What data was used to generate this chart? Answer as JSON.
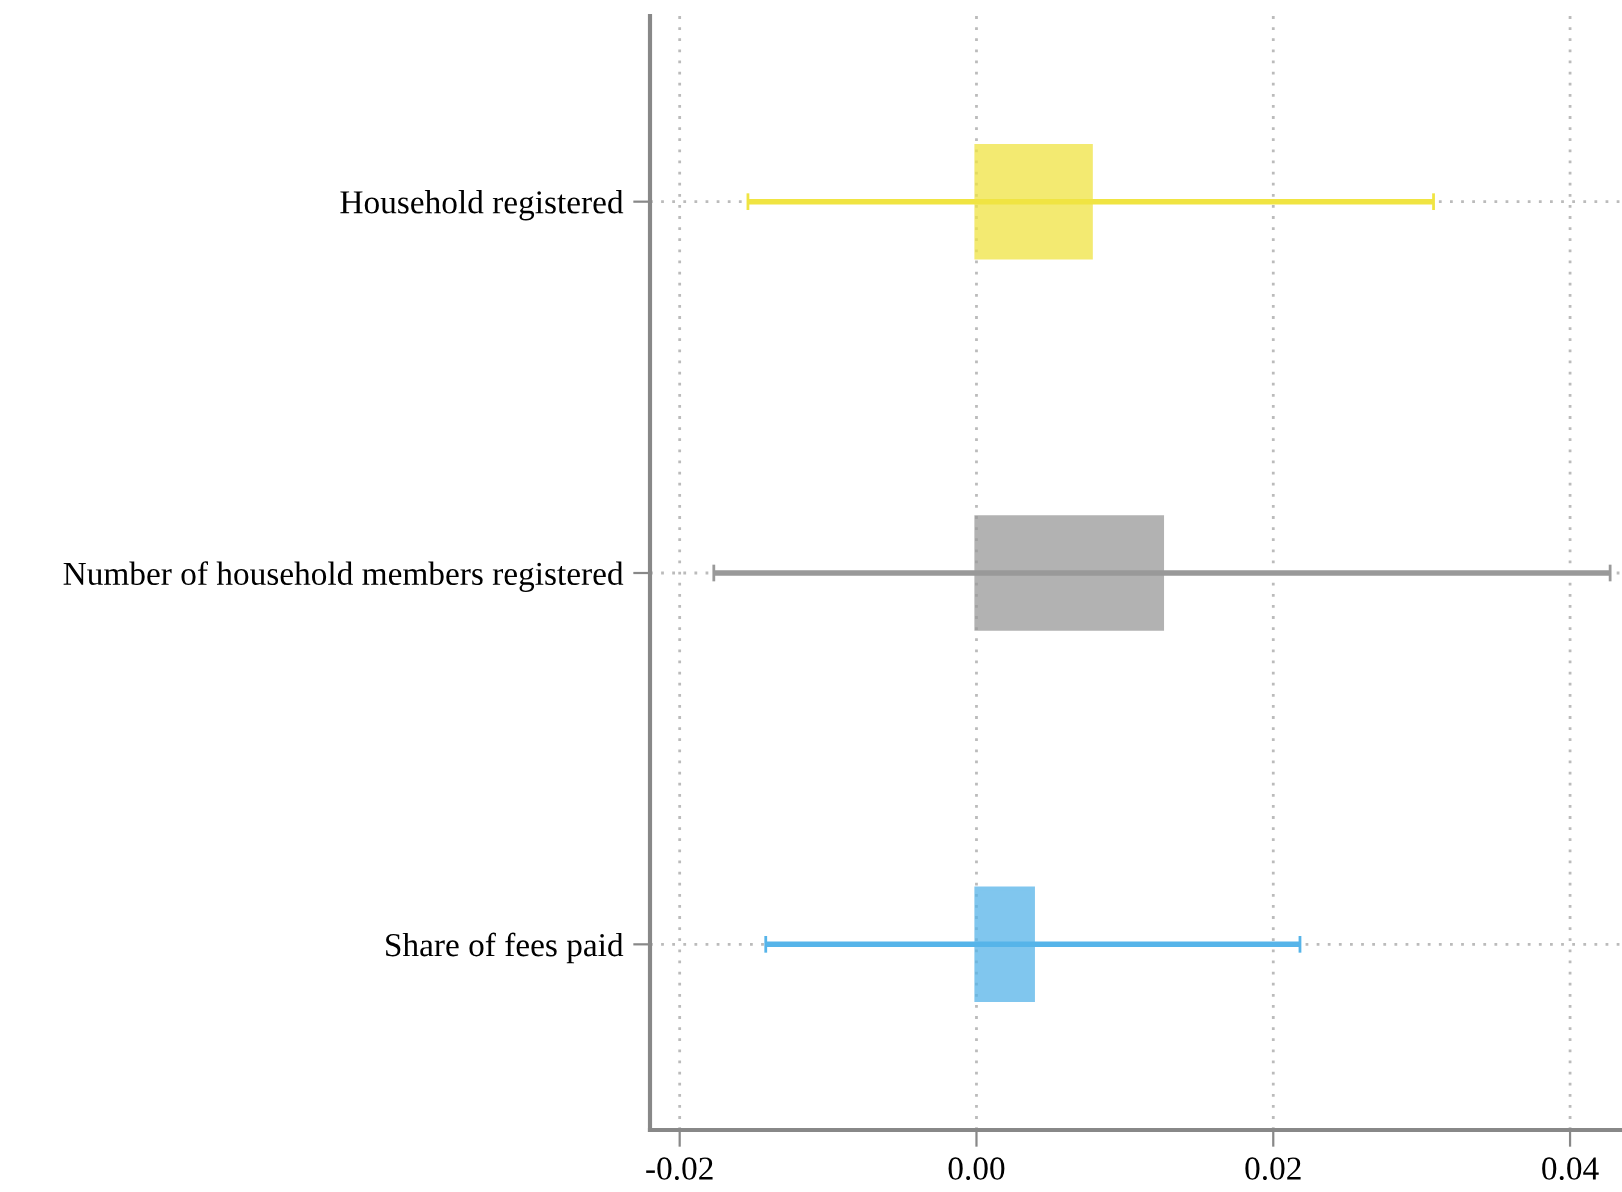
{
  "chart_data": {
    "type": "bar",
    "orientation": "horizontal",
    "categories": [
      "Household registered",
      "Number of household members registered",
      "Share of fees paid"
    ],
    "values": [
      0.0077,
      0.0125,
      0.0038
    ],
    "errors": [
      0.0231,
      0.0302,
      0.018
    ],
    "colors": [
      "#f0e442",
      "#999999",
      "#56b4e9"
    ],
    "xlim": [
      -0.022,
      0.0435
    ],
    "xticks": [
      {
        "value": -0.02,
        "label": "-0.02"
      },
      {
        "value": 0,
        "label": "0.00"
      },
      {
        "value": 0.02,
        "label": "0.02"
      },
      {
        "value": 0.04,
        "label": "0.04"
      }
    ],
    "grid": true
  }
}
